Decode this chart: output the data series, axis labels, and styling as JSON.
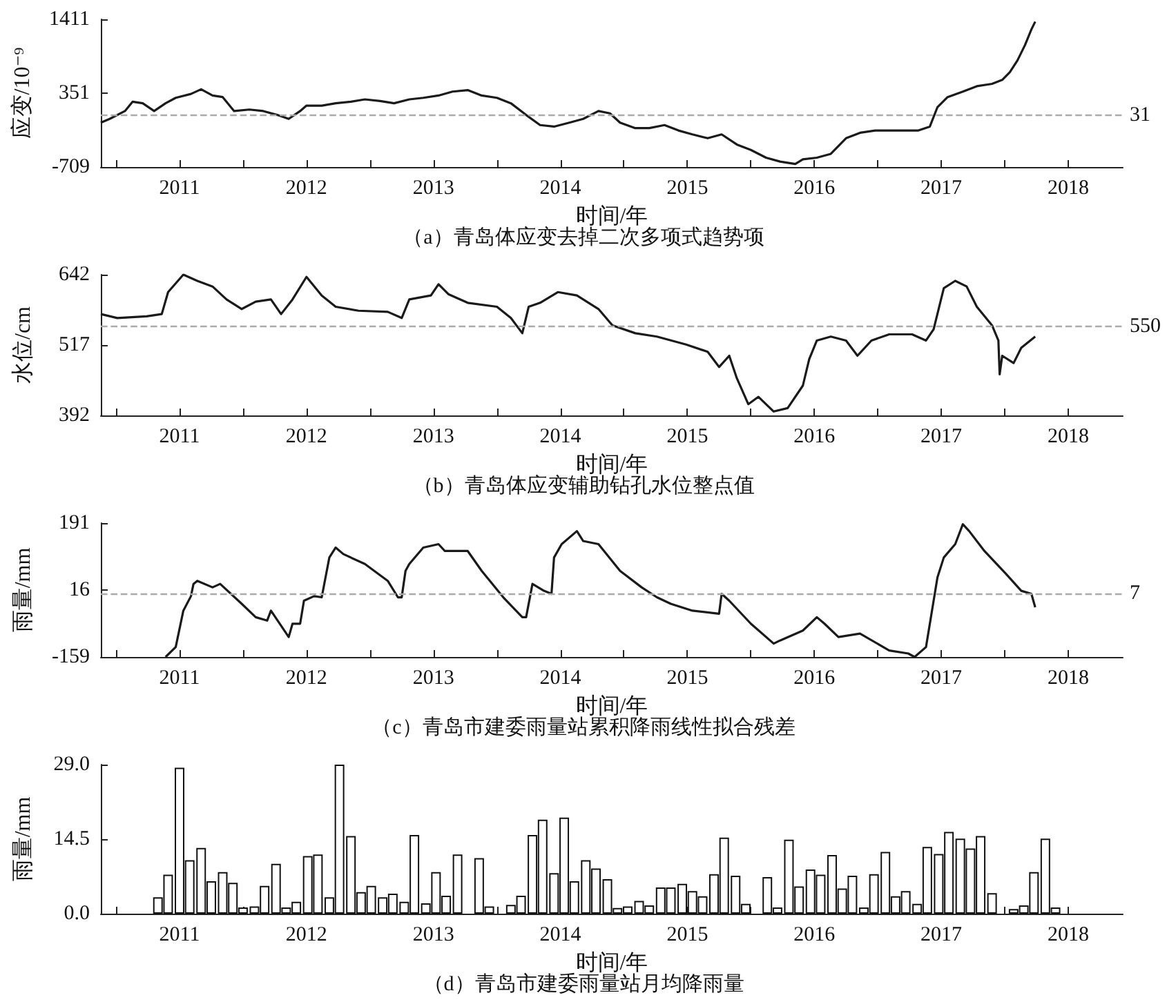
{
  "chart_data": [
    {
      "type": "line",
      "title": "（a）青岛体应变去掉二次多项式趋势项",
      "xlabel": "时间/年",
      "ylabel": "应变/10⁻⁹",
      "x": [
        2010.88,
        2010.95,
        2011.07,
        2011.13,
        2011.21,
        2011.3,
        2011.39,
        2011.47,
        2011.59,
        2011.67,
        2011.76,
        2011.84,
        2011.93,
        2012.05,
        2012.16,
        2012.27,
        2012.36,
        2012.45,
        2012.5,
        2012.62,
        2012.73,
        2012.85,
        2012.96,
        2013.08,
        2013.19,
        2013.31,
        2013.42,
        2013.54,
        2013.65,
        2013.77,
        2013.88,
        2014.0,
        2014.11,
        2014.23,
        2014.34,
        2014.45,
        2014.57,
        2014.68,
        2014.8,
        2014.89,
        2014.97,
        2015.09,
        2015.2,
        2015.32,
        2015.43,
        2015.54,
        2015.66,
        2015.77,
        2015.89,
        2016.0,
        2016.12,
        2016.23,
        2016.35,
        2016.41,
        2016.52,
        2016.63,
        2016.75,
        2016.86,
        2016.98,
        2017.09,
        2017.21,
        2017.32,
        2017.41,
        2017.47,
        2017.55,
        2017.67,
        2017.78,
        2017.9,
        2017.98,
        2018.04,
        2018.1,
        2018.16,
        2018.21,
        2018.24
      ],
      "series": [
        {
          "color": "#1a1a1a",
          "values": [
            -73,
            -18,
            94,
            228,
            206,
            94,
            206,
            284,
            340,
            407,
            317,
            295,
            94,
            116,
            94,
            38,
            -18,
            94,
            172,
            172,
            206,
            228,
            262,
            239,
            206,
            262,
            284,
            317,
            373,
            395,
            317,
            284,
            206,
            38,
            -107,
            -129,
            -73,
            -18,
            94,
            61,
            -73,
            -151,
            -151,
            -107,
            -185,
            -241,
            -296,
            -241,
            -386,
            -464,
            -575,
            -631,
            -665,
            -598,
            -575,
            -520,
            -296,
            -218,
            -185,
            -185,
            -185,
            -185,
            -129,
            150,
            295,
            373,
            451,
            485,
            541,
            652,
            820,
            1043,
            1266,
            1378
          ]
        }
      ],
      "xlim": [
        2010.88,
        2018.93
      ],
      "xticks": [
        {
          "value": 2011,
          "label": null
        },
        {
          "value": 2011.5,
          "label": "2011"
        },
        {
          "value": 2012,
          "label": null
        },
        {
          "value": 2012.5,
          "label": "2012"
        },
        {
          "value": 2013,
          "label": null
        },
        {
          "value": 2013.5,
          "label": "2013"
        },
        {
          "value": 2014,
          "label": null
        },
        {
          "value": 2014.5,
          "label": "2014"
        },
        {
          "value": 2015,
          "label": null
        },
        {
          "value": 2015.5,
          "label": "2015"
        },
        {
          "value": 2016,
          "label": null
        },
        {
          "value": 2016.5,
          "label": "2016"
        },
        {
          "value": 2017,
          "label": null
        },
        {
          "value": 2017.5,
          "label": "2017"
        },
        {
          "value": 2018,
          "label": null
        },
        {
          "value": 2018.5,
          "label": "2018"
        }
      ],
      "ylim": [
        -709,
        1411
      ],
      "yticks": [
        -709,
        351,
        1411
      ],
      "ref_lines": [
        {
          "axis": "y",
          "value": 31,
          "label": "31",
          "color": "#aaaaaa",
          "line_style": "dashed"
        }
      ]
    },
    {
      "type": "line",
      "title": "（b）青岛体应变辅助钻孔水位整点值",
      "xlabel": "时间/年",
      "ylabel": "水位/cm",
      "x": [
        2010.88,
        2011.01,
        2011.24,
        2011.36,
        2011.41,
        2011.53,
        2011.64,
        2011.76,
        2011.87,
        2011.99,
        2012.1,
        2012.22,
        2012.3,
        2012.39,
        2012.5,
        2012.62,
        2012.73,
        2012.91,
        2013.14,
        2013.25,
        2013.31,
        2013.48,
        2013.54,
        2013.62,
        2013.77,
        2014.0,
        2014.11,
        2014.2,
        2014.25,
        2014.34,
        2014.48,
        2014.63,
        2014.8,
        2014.91,
        2015.09,
        2015.26,
        2015.49,
        2015.66,
        2015.75,
        2015.83,
        2015.89,
        2015.98,
        2016.06,
        2016.18,
        2016.29,
        2016.41,
        2016.46,
        2016.52,
        2016.63,
        2016.75,
        2016.84,
        2016.95,
        2017.09,
        2017.27,
        2017.38,
        2017.44,
        2017.52,
        2017.61,
        2017.7,
        2017.78,
        2017.9,
        2017.95,
        2017.96,
        2017.98,
        2018.07,
        2018.13,
        2018.24
      ],
      "series": [
        {
          "color": "#1a1a1a",
          "values": [
            572,
            565,
            568,
            572,
            611,
            642,
            631,
            621,
            598,
            581,
            594,
            598,
            572,
            598,
            638,
            605,
            585,
            578,
            576,
            565,
            598,
            605,
            625,
            607,
            592,
            585,
            565,
            538,
            585,
            592,
            611,
            605,
            581,
            552,
            538,
            532,
            518,
            505,
            478,
            498,
            458,
            412,
            425,
            399,
            405,
            445,
            492,
            525,
            532,
            525,
            498,
            525,
            536,
            536,
            525,
            545,
            618,
            631,
            621,
            585,
            552,
            525,
            465,
            498,
            485,
            512,
            532
          ]
        }
      ],
      "xlim": [
        2010.88,
        2018.93
      ],
      "xticks": [
        {
          "value": 2011,
          "label": null
        },
        {
          "value": 2011.5,
          "label": "2011"
        },
        {
          "value": 2012,
          "label": null
        },
        {
          "value": 2012.5,
          "label": "2012"
        },
        {
          "value": 2013,
          "label": null
        },
        {
          "value": 2013.5,
          "label": "2013"
        },
        {
          "value": 2014,
          "label": null
        },
        {
          "value": 2014.5,
          "label": "2014"
        },
        {
          "value": 2015,
          "label": null
        },
        {
          "value": 2015.5,
          "label": "2015"
        },
        {
          "value": 2016,
          "label": null
        },
        {
          "value": 2016.5,
          "label": "2016"
        },
        {
          "value": 2017,
          "label": null
        },
        {
          "value": 2017.5,
          "label": "2017"
        },
        {
          "value": 2018,
          "label": null
        },
        {
          "value": 2018.5,
          "label": "2018"
        }
      ],
      "ylim": [
        392,
        642
      ],
      "yticks": [
        392,
        517,
        642
      ],
      "ref_lines": [
        {
          "axis": "y",
          "value": 550,
          "label": "550",
          "color": "#aaaaaa",
          "line_style": "dashed"
        }
      ]
    },
    {
      "type": "line",
      "title": "（c）青岛市建委雨量站累积降雨线性拟合残差",
      "xlabel": "时间/年",
      "ylabel": "雨量/mm",
      "x": [
        2011.39,
        2011.47,
        2011.53,
        2011.59,
        2011.61,
        2011.64,
        2011.76,
        2011.82,
        2011.99,
        2012.1,
        2012.19,
        2012.22,
        2012.36,
        2012.39,
        2012.45,
        2012.48,
        2012.56,
        2012.62,
        2012.68,
        2012.73,
        2012.79,
        2012.96,
        2013.14,
        2013.22,
        2013.25,
        2013.28,
        2013.31,
        2013.42,
        2013.54,
        2013.59,
        2013.77,
        2013.88,
        2014.05,
        2014.2,
        2014.23,
        2014.28,
        2014.37,
        2014.43,
        2014.45,
        2014.51,
        2014.63,
        2014.68,
        2014.8,
        2014.97,
        2015.14,
        2015.26,
        2015.37,
        2015.54,
        2015.75,
        2015.77,
        2015.83,
        2016.0,
        2016.18,
        2016.23,
        2016.41,
        2016.52,
        2016.58,
        2016.69,
        2016.86,
        2017.09,
        2017.24,
        2017.29,
        2017.38,
        2017.47,
        2017.52,
        2017.61,
        2017.67,
        2017.72,
        2017.84,
        2018.01,
        2018.13,
        2018.21,
        2018.24
      ],
      "series": [
        {
          "color": "#1a1a1a",
          "values": [
            -159,
            -133,
            -38,
            0,
            32,
            40,
            23,
            32,
            -20,
            -55,
            -64,
            -38,
            -107,
            -72,
            -72,
            -12,
            0,
            -3,
            101,
            127,
            110,
            84,
            40,
            -3,
            -3,
            66,
            84,
            127,
            136,
            118,
            118,
            66,
            -3,
            -55,
            -55,
            32,
            14,
            6,
            101,
            136,
            170,
            144,
            136,
            66,
            23,
            -3,
            -20,
            -38,
            -46,
            6,
            -12,
            -72,
            -124,
            -116,
            -90,
            -55,
            -72,
            -107,
            -98,
            -142,
            -150,
            -159,
            -133,
            49,
            101,
            136,
            188,
            170,
            118,
            58,
            14,
            6,
            -29
          ]
        }
      ],
      "xlim": [
        2010.88,
        2018.93
      ],
      "xticks": [
        {
          "value": 2011,
          "label": null
        },
        {
          "value": 2011.5,
          "label": "2011"
        },
        {
          "value": 2012,
          "label": null
        },
        {
          "value": 2012.5,
          "label": "2012"
        },
        {
          "value": 2013,
          "label": null
        },
        {
          "value": 2013.5,
          "label": "2013"
        },
        {
          "value": 2014,
          "label": null
        },
        {
          "value": 2014.5,
          "label": "2014"
        },
        {
          "value": 2015,
          "label": null
        },
        {
          "value": 2015.5,
          "label": "2015"
        },
        {
          "value": 2016,
          "label": null
        },
        {
          "value": 2016.5,
          "label": "2016"
        },
        {
          "value": 2017,
          "label": null
        },
        {
          "value": 2017.5,
          "label": "2017"
        },
        {
          "value": 2018,
          "label": null
        },
        {
          "value": 2018.5,
          "label": "2018"
        }
      ],
      "ylim": [
        -159,
        191
      ],
      "yticks": [
        -159,
        16,
        191
      ],
      "ref_lines": [
        {
          "axis": "y",
          "value": 7,
          "label": "7",
          "color": "#aaaaaa",
          "line_style": "dashed"
        }
      ]
    },
    {
      "type": "bar",
      "title": "（d）青岛市建委雨量站月均降雨量",
      "xlabel": "时间/年",
      "ylabel": "雨量/mm",
      "x": [
        2011.33,
        2011.41,
        2011.5,
        2011.58,
        2011.67,
        2011.75,
        2011.84,
        2011.92,
        2012.0,
        2012.09,
        2012.17,
        2012.26,
        2012.34,
        2012.42,
        2012.51,
        2012.59,
        2012.68,
        2012.76,
        2012.85,
        2012.93,
        2013.01,
        2013.1,
        2013.18,
        2013.27,
        2013.35,
        2013.44,
        2013.52,
        2013.6,
        2013.69,
        2013.77,
        2013.86,
        2013.94,
        2014.02,
        2014.11,
        2014.19,
        2014.28,
        2014.36,
        2014.45,
        2014.53,
        2014.61,
        2014.7,
        2014.78,
        2014.87,
        2014.95,
        2015.03,
        2015.12,
        2015.2,
        2015.29,
        2015.37,
        2015.46,
        2015.54,
        2015.62,
        2015.71,
        2015.79,
        2015.88,
        2015.96,
        2016.05,
        2016.13,
        2016.21,
        2016.3,
        2016.38,
        2016.47,
        2016.55,
        2016.64,
        2016.72,
        2016.8,
        2016.89,
        2016.97,
        2017.06,
        2017.14,
        2017.22,
        2017.31,
        2017.39,
        2017.48,
        2017.56,
        2017.65,
        2017.73,
        2017.81,
        2017.9,
        2017.98,
        2018.07,
        2018.15,
        2018.23,
        2018.32,
        2018.4
      ],
      "series": [
        {
          "color": "#ffffff",
          "values": [
            3.2,
            7.6,
            28.4,
            10.4,
            12.8,
            6.3,
            8.1,
            6.0,
            1.2,
            1.4,
            5.4,
            9.7,
            1.2,
            2.3,
            11.2,
            11.5,
            3.2,
            29.0,
            15.1,
            4.2,
            5.4,
            3.2,
            3.9,
            2.3,
            15.3,
            2.0,
            8.1,
            3.5,
            11.5,
            null,
            10.8,
            1.4,
            null,
            1.7,
            3.5,
            15.3,
            18.3,
            7.9,
            18.7,
            6.3,
            10.4,
            8.8,
            6.7,
            1.1,
            1.4,
            2.5,
            1.6,
            5.1,
            5.1,
            5.8,
            4.4,
            3.4,
            7.7,
            14.8,
            7.4,
            1.9,
            null,
            7.1,
            1.2,
            14.4,
            5.3,
            8.6,
            7.6,
            11.4,
            4.9,
            7.4,
            1.2,
            7.7,
            12.0,
            3.4,
            4.4,
            1.9,
            13.0,
            11.6,
            15.9,
            14.6,
            12.7,
            15.1,
            4.0,
            null,
            0.9,
            1.6,
            8.1,
            14.6,
            1.2
          ]
        }
      ],
      "xlim": [
        2010.88,
        2018.93
      ],
      "xticks": [
        {
          "value": 2011,
          "label": null
        },
        {
          "value": 2011.5,
          "label": "2011"
        },
        {
          "value": 2012,
          "label": null
        },
        {
          "value": 2012.5,
          "label": "2012"
        },
        {
          "value": 2013,
          "label": null
        },
        {
          "value": 2013.5,
          "label": "2013"
        },
        {
          "value": 2014,
          "label": null
        },
        {
          "value": 2014.5,
          "label": "2014"
        },
        {
          "value": 2015,
          "label": null
        },
        {
          "value": 2015.5,
          "label": "2015"
        },
        {
          "value": 2016,
          "label": null
        },
        {
          "value": 2016.5,
          "label": "2016"
        },
        {
          "value": 2017,
          "label": null
        },
        {
          "value": 2017.5,
          "label": "2017"
        },
        {
          "value": 2018,
          "label": null
        },
        {
          "value": 2018.5,
          "label": "2018"
        }
      ],
      "ylim": [
        0,
        29.0
      ],
      "yticks": [
        {
          "value": 0,
          "label": "0.0"
        },
        {
          "value": 14.5,
          "label": "14.5"
        },
        {
          "value": 29.0,
          "label": "29.0"
        }
      ]
    }
  ]
}
